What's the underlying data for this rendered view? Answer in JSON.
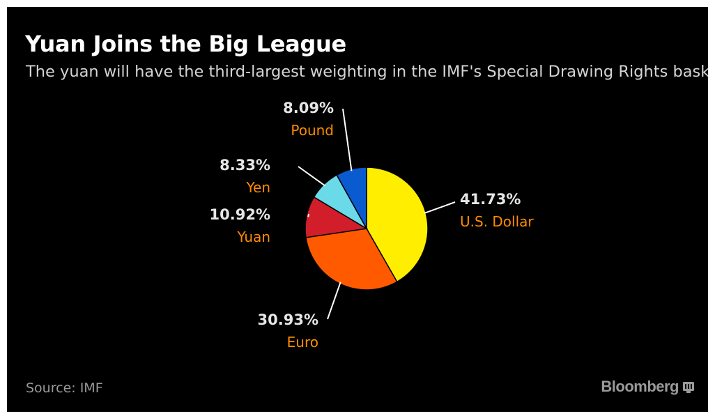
{
  "title": "Yuan Joins the Big League",
  "subtitle": "The yuan will have the third-largest weighting in the IMF's Special Drawing Rights basket",
  "source": "Source: IMF",
  "brand": "Bloomberg",
  "colors": {
    "background": "#000000",
    "value_label": "#e6e6e6",
    "category_label": "#ff8c00",
    "leader_line": "#ffffff"
  },
  "chart_data": {
    "type": "pie",
    "title": "Yuan Joins the Big League",
    "subtitle": "The yuan will have the third-largest weighting in the IMF's Special Drawing Rights basket",
    "slices": [
      {
        "label": "U.S. Dollar",
        "value": 41.73,
        "value_label": "41.73%",
        "color": "#ffee00"
      },
      {
        "label": "Euro",
        "value": 30.93,
        "value_label": "30.93%",
        "color": "#ff5a00"
      },
      {
        "label": "Yuan",
        "value": 10.92,
        "value_label": "10.92%",
        "color": "#d21e2b"
      },
      {
        "label": "Yen",
        "value": 8.33,
        "value_label": "8.33%",
        "color": "#6ad9e8"
      },
      {
        "label": "Pound",
        "value": 8.09,
        "value_label": "8.09%",
        "color": "#0a5bd0"
      }
    ],
    "start": "12 o'clock",
    "direction": "clockwise"
  }
}
